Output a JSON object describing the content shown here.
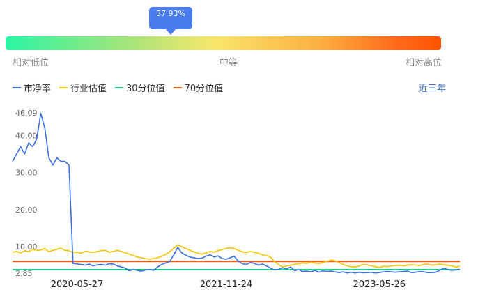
{
  "gauge": {
    "percentile_label": "37.93%",
    "percentile": 0.3793,
    "low_label": "相对低位",
    "mid_label": "中等",
    "high_label": "相对高位"
  },
  "range_link": "近三年",
  "colors": {
    "pb": "#3a6ee8",
    "industry": "#f5c400",
    "p30": "#1fcf85",
    "p70": "#ff5a14"
  },
  "chart_data": {
    "type": "line",
    "title": "",
    "xlabel": "",
    "ylabel": "",
    "ylim": [
      2.85,
      46.09
    ],
    "yticks": [
      "2.85",
      "10.00",
      "20.00",
      "30.00",
      "40.00",
      "46.09"
    ],
    "ytick_values": [
      2.85,
      10,
      20,
      30,
      40,
      46.09
    ],
    "xticks": [
      "2020-05-27",
      "2021-11-24",
      "2023-05-26"
    ],
    "xtick_index": [
      16,
      53,
      91
    ],
    "x_count": 112,
    "series": [
      {
        "name": "市净率",
        "key": "pb",
        "values": [
          33,
          35,
          37,
          35,
          38,
          37,
          39,
          46,
          42,
          34,
          32,
          34,
          33,
          33,
          32,
          5.5,
          5.3,
          5.2,
          5.0,
          5.3,
          4.8,
          5.1,
          5.2,
          5.0,
          5.4,
          5.3,
          4.8,
          4.5,
          4.2,
          3.5,
          3.8,
          3.6,
          3.4,
          3.7,
          3.8,
          3.6,
          4.5,
          5.2,
          5.6,
          6.0,
          7.8,
          9.8,
          8.3,
          7.7,
          7.2,
          7.0,
          6.8,
          6.9,
          7.4,
          7.8,
          7.2,
          7.5,
          6.8,
          6.6,
          7.0,
          7.4,
          6.1,
          5.4,
          5.2,
          5.7,
          5.5,
          5.0,
          5.3,
          4.8,
          4.2,
          3.7,
          3.9,
          4.3,
          4.0,
          4.5,
          3.5,
          3.8,
          3.3,
          3.4,
          3.2,
          3.6,
          3.1,
          3.5,
          3.3,
          3.4,
          3.2,
          3.0,
          3.2,
          2.9,
          3.1,
          2.9,
          3.1,
          2.95,
          3.0,
          3.1,
          2.9,
          3.0,
          3.2,
          3.3,
          3.2,
          3.1,
          3.2,
          3.3,
          3.4,
          3.0,
          3.1,
          3.3,
          3.2,
          3.0,
          3.0,
          3.1,
          3.6,
          4.2,
          3.8,
          3.6,
          3.7,
          3.9
        ]
      },
      {
        "name": "行业估值",
        "key": "industry",
        "values": [
          8.5,
          8.7,
          8.3,
          8.9,
          8.6,
          9.3,
          9.0,
          9.1,
          9.5,
          8.6,
          9.0,
          9.3,
          9.6,
          9.0,
          8.9,
          8.4,
          8.5,
          8.2,
          8.8,
          8.6,
          8.4,
          8.7,
          8.9,
          9.0,
          8.5,
          8.7,
          9.0,
          8.7,
          8.3,
          8.0,
          7.6,
          7.2,
          7.0,
          6.8,
          6.6,
          6.8,
          7.0,
          7.4,
          7.9,
          8.6,
          9.6,
          10.4,
          10.0,
          9.5,
          9.0,
          8.6,
          8.2,
          8.0,
          8.3,
          8.7,
          8.5,
          8.9,
          9.2,
          9.5,
          9.7,
          9.5,
          9.0,
          8.6,
          8.4,
          8.7,
          8.5,
          8.2,
          7.8,
          7.6,
          7.2,
          6.0,
          5.2,
          4.5,
          4.8,
          5.0,
          5.2,
          5.4,
          5.6,
          5.5,
          5.8,
          5.6,
          5.4,
          5.7,
          6.0,
          6.4,
          6.2,
          5.7,
          5.2,
          4.8,
          4.6,
          4.5,
          4.8,
          5.2,
          5.1,
          4.8,
          4.6,
          4.4,
          4.7,
          4.6,
          4.8,
          4.9,
          5.0,
          4.8,
          5.0,
          5.1,
          5.0,
          4.9,
          5.2,
          5.3,
          5.0,
          5.1,
          5.3,
          5.1,
          5.0,
          4.8,
          4.5,
          4.7
        ]
      }
    ],
    "reference_lines": [
      {
        "name": "30分位值",
        "key": "p30",
        "value": 3.8
      },
      {
        "name": "70分位值",
        "key": "p70",
        "value": 6.0
      }
    ]
  }
}
